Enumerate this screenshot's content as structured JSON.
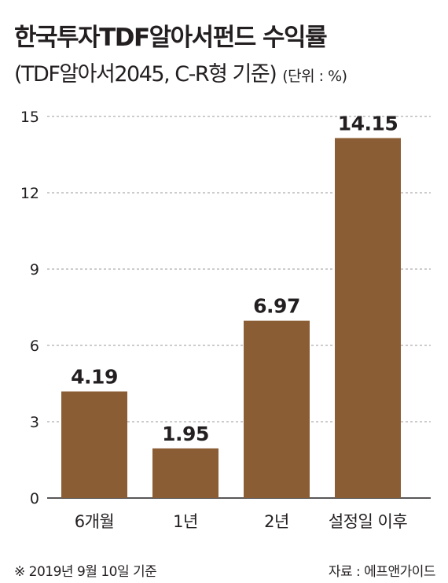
{
  "chart_data": {
    "type": "bar",
    "title": "한국투자TDF알아서펀드 수익률",
    "subtitle": "(TDF알아서2045, C-R형 기준)",
    "unit": "(단위 : %)",
    "categories": [
      "6개월",
      "1년",
      "2년",
      "설정일 이후"
    ],
    "values": [
      4.19,
      1.95,
      6.97,
      14.15
    ],
    "value_labels": [
      "4.19",
      "1.95",
      "6.97",
      "14.15"
    ],
    "yticks": [
      0,
      3,
      6,
      9,
      12,
      15
    ],
    "ylim": [
      0,
      15
    ],
    "grid": "dashed horizontal",
    "bar_color": "#8b5d35"
  },
  "footnote": "※ 2019년 9월 10일 기준",
  "source": "자료 : 에프앤가이드"
}
